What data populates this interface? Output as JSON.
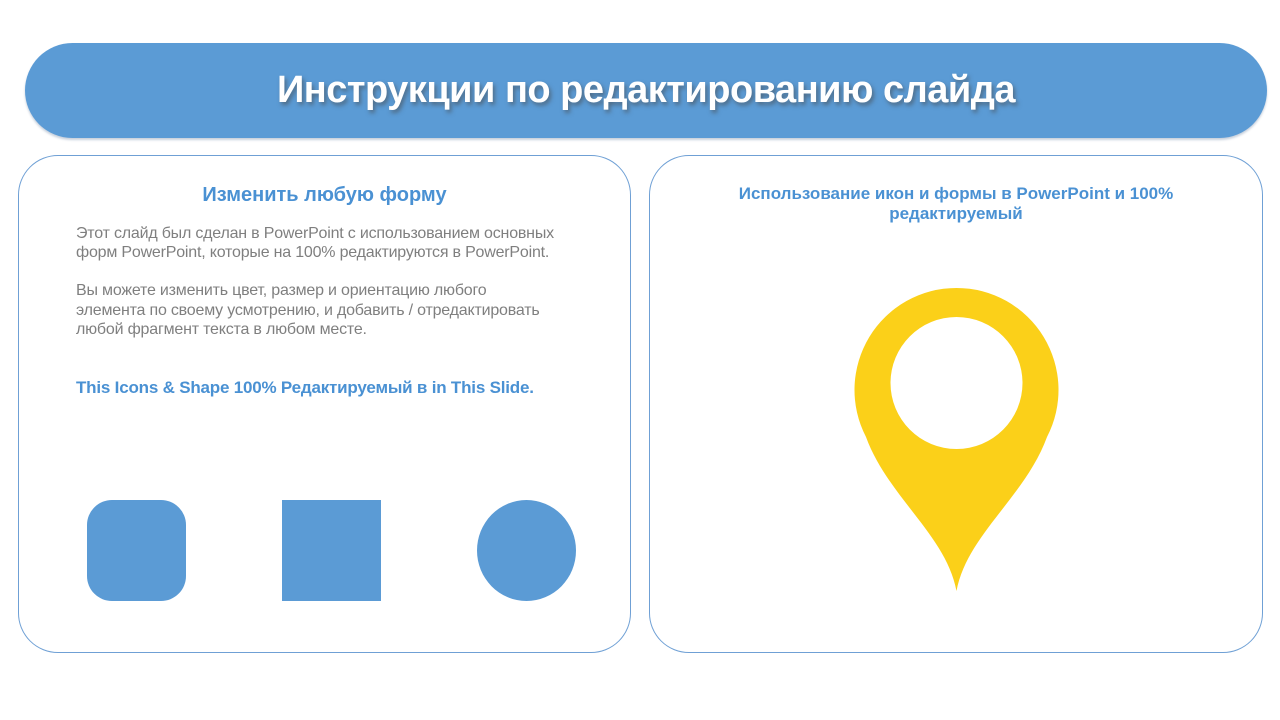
{
  "slide": {
    "title": "Инструкции по редактированию слайда"
  },
  "left_card": {
    "heading": "Изменить любую форму",
    "paragraph1": "Этот слайд был сделан в PowerPoint с использованием основных форм PowerPoint, которые на 100% редактируются в PowerPoint.",
    "paragraph2": "Вы можете изменить цвет, размер и ориентацию любого элемента по своему усмотрению, и добавить / отредактировать любой фрагмент текста в любом месте.",
    "highlight": "This Icons & Shape 100% Редактируемый в in This Slide.",
    "shapes": [
      "rounded-square",
      "square",
      "circle"
    ]
  },
  "right_card": {
    "heading": "Использование икон и формы в PowerPoint и 100% редактируемый",
    "icon": "map-pin-icon"
  },
  "colors": {
    "accent_blue": "#5B9BD5",
    "heading_blue": "#4A91D3",
    "border_blue": "#6FA0D5",
    "body_gray": "#7F7F7F",
    "pin_yellow": "#FBD019",
    "title_white": "#FFFFFF"
  }
}
